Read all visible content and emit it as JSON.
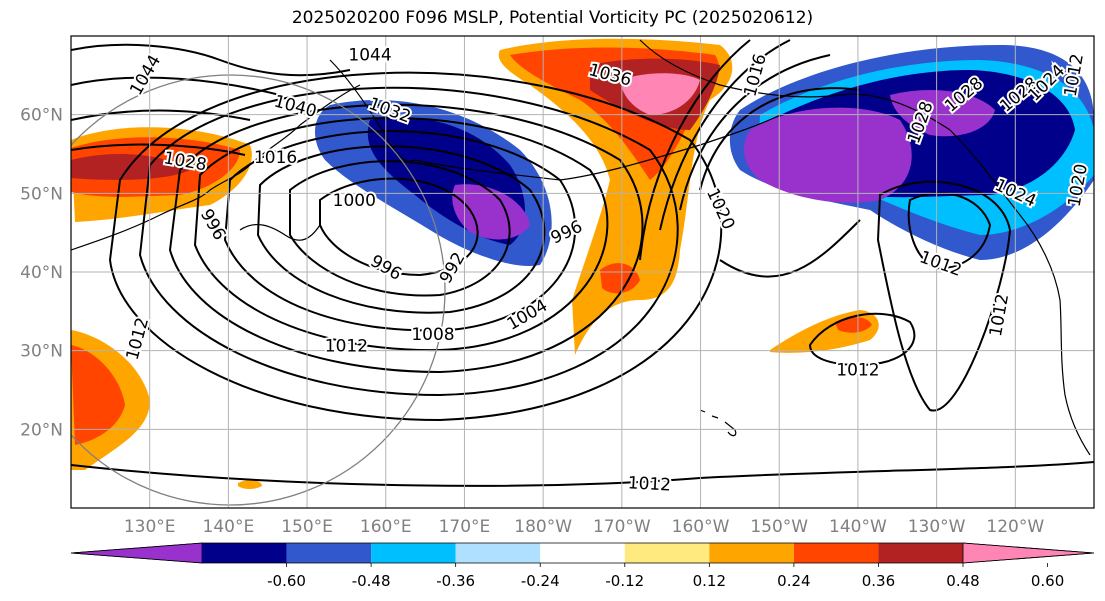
{
  "title": "2025020200 F096 MSLP, Potential Vorticity PC (2025020612)",
  "map": {
    "lon_range": [
      120,
      250
    ],
    "lat_range": [
      10,
      70
    ],
    "lon_ticks": [
      {
        "lon": 130,
        "label": "130°E"
      },
      {
        "lon": 140,
        "label": "140°E"
      },
      {
        "lon": 150,
        "label": "150°E"
      },
      {
        "lon": 160,
        "label": "160°E"
      },
      {
        "lon": 170,
        "label": "170°E"
      },
      {
        "lon": 180,
        "label": "180°W"
      },
      {
        "lon": 190,
        "label": "170°W"
      },
      {
        "lon": 200,
        "label": "160°W"
      },
      {
        "lon": 210,
        "label": "150°W"
      },
      {
        "lon": 220,
        "label": "140°W"
      },
      {
        "lon": 230,
        "label": "130°W"
      },
      {
        "lon": 240,
        "label": "120°W"
      }
    ],
    "lat_ticks": [
      {
        "lat": 20,
        "label": "20°N"
      },
      {
        "lat": 30,
        "label": "30°N"
      },
      {
        "lat": 40,
        "label": "40°N"
      },
      {
        "lat": 50,
        "label": "50°N"
      },
      {
        "lat": 60,
        "label": "60°N"
      }
    ],
    "grid": true,
    "tick_label_color": "#808080"
  },
  "isobar_labels": [
    {
      "text": "1044",
      "lon": 158,
      "lat": 67.5,
      "rot": 0
    },
    {
      "text": "1044",
      "lon": 129.5,
      "lat": 65,
      "rot": -60
    },
    {
      "text": "1040",
      "lon": 148.5,
      "lat": 61,
      "rot": 15
    },
    {
      "text": "1032",
      "lon": 160.5,
      "lat": 60.5,
      "rot": 20
    },
    {
      "text": "1036",
      "lon": 188.5,
      "lat": 65,
      "rot": 15
    },
    {
      "text": "1028",
      "lon": 134.5,
      "lat": 54,
      "rot": 10
    },
    {
      "text": "1016",
      "lon": 146,
      "lat": 54.5,
      "rot": 0
    },
    {
      "text": "1000",
      "lon": 156,
      "lat": 49,
      "rot": 0
    },
    {
      "text": "996",
      "lon": 138,
      "lat": 46,
      "rot": 60
    },
    {
      "text": "996",
      "lon": 160,
      "lat": 40.5,
      "rot": 30
    },
    {
      "text": "992",
      "lon": 168.5,
      "lat": 40.5,
      "rot": -60
    },
    {
      "text": "996",
      "lon": 183,
      "lat": 45,
      "rot": -25
    },
    {
      "text": "1004",
      "lon": 178,
      "lat": 34.5,
      "rot": -30
    },
    {
      "text": "1008",
      "lon": 166,
      "lat": 32,
      "rot": 0
    },
    {
      "text": "1012",
      "lon": 155,
      "lat": 30.5,
      "rot": 0
    },
    {
      "text": "1012",
      "lon": 128.5,
      "lat": 31.5,
      "rot": -75
    },
    {
      "text": "1020",
      "lon": 202.5,
      "lat": 48,
      "rot": 65
    },
    {
      "text": "1012",
      "lon": 230.5,
      "lat": 41,
      "rot": 20
    },
    {
      "text": "1012",
      "lon": 220,
      "lat": 27.5,
      "rot": 0
    },
    {
      "text": "1012",
      "lon": 193.5,
      "lat": 13,
      "rot": 3
    },
    {
      "text": "1012",
      "lon": 238,
      "lat": 34.5,
      "rot": -80
    },
    {
      "text": "1024",
      "lon": 240,
      "lat": 50,
      "rot": 25
    },
    {
      "text": "1028",
      "lon": 228,
      "lat": 59,
      "rot": -70
    },
    {
      "text": "1028",
      "lon": 240.5,
      "lat": 62.5,
      "rot": -40
    },
    {
      "text": "1028",
      "lon": 233.5,
      "lat": 62.5,
      "rot": -40
    },
    {
      "text": "1024",
      "lon": 244,
      "lat": 64,
      "rot": -45
    },
    {
      "text": "1012",
      "lon": 247.5,
      "lat": 65,
      "rot": -80
    },
    {
      "text": "1020",
      "lon": 248,
      "lat": 51,
      "rot": -80
    },
    {
      "text": "1016",
      "lon": 207,
      "lat": 65,
      "rot": -75
    }
  ],
  "colorbar": {
    "colors": [
      "#9932cc",
      "#00008b",
      "#3158cc",
      "#00bfff",
      "#b0e0ff",
      "#ffffff",
      "#ffea7f",
      "#ffa500",
      "#ff4500",
      "#b22222",
      "#ff85b4"
    ],
    "tick_labels": [
      "-0.60",
      "-0.48",
      "-0.36",
      "-0.24",
      "-0.12",
      "0.12",
      "0.24",
      "0.36",
      "0.48",
      "0.60"
    ]
  }
}
